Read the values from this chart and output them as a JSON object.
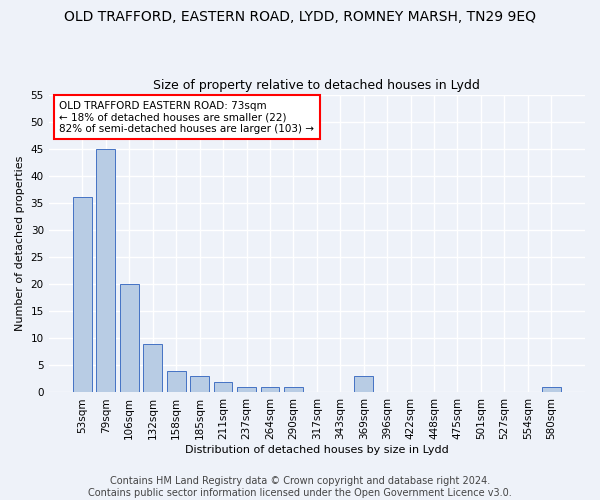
{
  "title": "OLD TRAFFORD, EASTERN ROAD, LYDD, ROMNEY MARSH, TN29 9EQ",
  "subtitle": "Size of property relative to detached houses in Lydd",
  "xlabel": "Distribution of detached houses by size in Lydd",
  "ylabel": "Number of detached properties",
  "categories": [
    "53sqm",
    "79sqm",
    "106sqm",
    "132sqm",
    "158sqm",
    "185sqm",
    "211sqm",
    "237sqm",
    "264sqm",
    "290sqm",
    "317sqm",
    "343sqm",
    "369sqm",
    "396sqm",
    "422sqm",
    "448sqm",
    "475sqm",
    "501sqm",
    "527sqm",
    "554sqm",
    "580sqm"
  ],
  "values": [
    36,
    45,
    20,
    9,
    4,
    3,
    2,
    1,
    1,
    1,
    0,
    0,
    3,
    0,
    0,
    0,
    0,
    0,
    0,
    0,
    1
  ],
  "bar_color": "#b8cce4",
  "bar_edge_color": "#4472c4",
  "annotation_line1": "OLD TRAFFORD EASTERN ROAD: 73sqm",
  "annotation_line2": "← 18% of detached houses are smaller (22)",
  "annotation_line3": "82% of semi-detached houses are larger (103) →",
  "annotation_box_color": "white",
  "annotation_box_edge_color": "red",
  "ylim": [
    0,
    55
  ],
  "yticks": [
    0,
    5,
    10,
    15,
    20,
    25,
    30,
    35,
    40,
    45,
    50,
    55
  ],
  "footer": "Contains HM Land Registry data © Crown copyright and database right 2024.\nContains public sector information licensed under the Open Government Licence v3.0.",
  "background_color": "#eef2f9",
  "plot_background_color": "#eef2f9",
  "grid_color": "#ffffff",
  "title_fontsize": 10,
  "subtitle_fontsize": 9,
  "footer_fontsize": 7,
  "axis_label_fontsize": 8,
  "tick_fontsize": 7.5,
  "annotation_fontsize": 7.5
}
